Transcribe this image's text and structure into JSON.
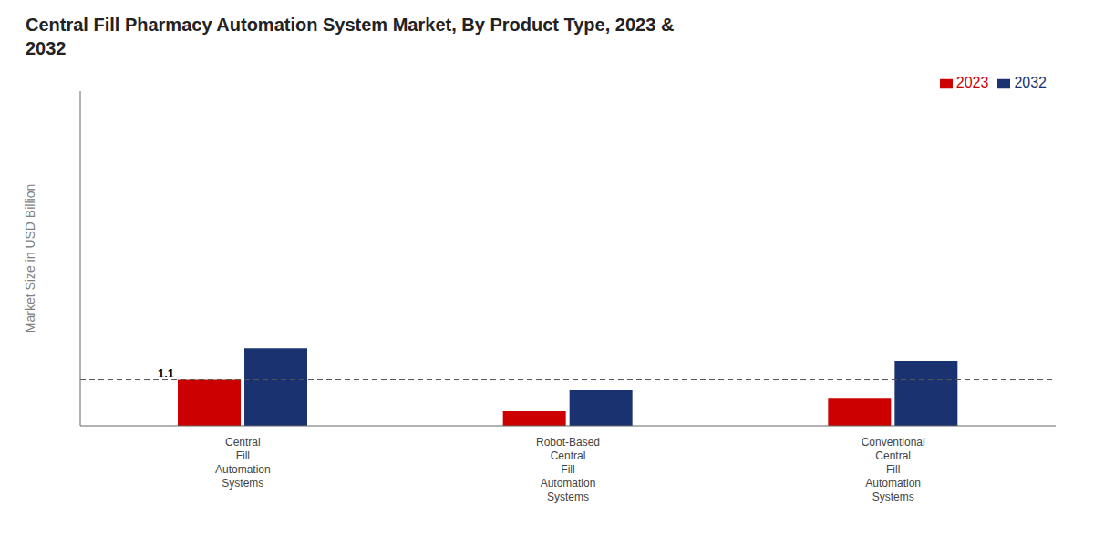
{
  "chart_data": {
    "type": "bar",
    "title": "Central Fill Pharmacy Automation System Market, By Product Type, 2023 &\n2032",
    "ylabel": "Market Size in USD Billion",
    "categories": [
      "Central\nFill\nAutomation\nSystems",
      "Robot-Based\nCentral\nFill\nAutomation\nSystems",
      "Conventional\nCentral\nFill\nAutomation\nSystems"
    ],
    "series": [
      {
        "name": "2023",
        "color": "#cc0000",
        "values": [
          1.1,
          0.35,
          0.65
        ]
      },
      {
        "name": "2032",
        "color": "#1a3370",
        "values": [
          1.85,
          0.85,
          1.55
        ]
      }
    ],
    "ylim": [
      0,
      8.0
    ],
    "tick_labels": "x",
    "grid": false,
    "legend": "upper right",
    "hline": 1.1,
    "annotations": [
      {
        "text": "1.1",
        "series": "2023",
        "category": "Central\nFill\nAutomation\nSystems"
      }
    ]
  }
}
